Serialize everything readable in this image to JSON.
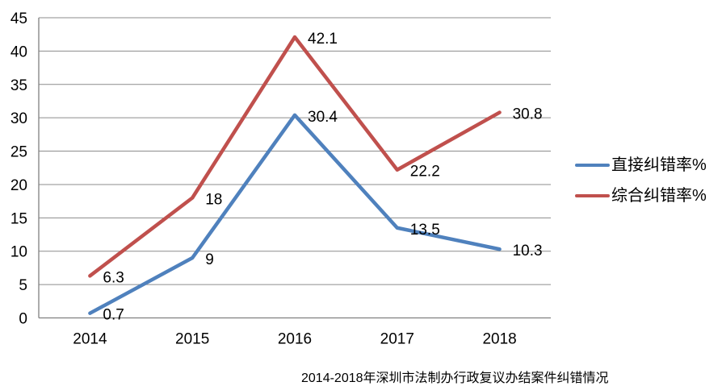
{
  "chart_data": {
    "type": "line",
    "title": "2014-2018年深圳市法制办行政复议办结案件纠错情况",
    "categories": [
      "2014",
      "2015",
      "2016",
      "2017",
      "2018"
    ],
    "series": [
      {
        "name": "直接纠错率%",
        "color": "#4F81BD",
        "values": [
          0.7,
          9,
          30.4,
          13.5,
          10.3
        ],
        "labels": [
          "0.7",
          "9",
          "30.4",
          "13.5",
          "10.3"
        ]
      },
      {
        "name": "综合纠错率%",
        "color": "#C0504D",
        "values": [
          6.3,
          18,
          42.1,
          22.2,
          30.8
        ],
        "labels": [
          "6.3",
          "18",
          "42.1",
          "22.2",
          "30.8"
        ]
      }
    ],
    "y_axis": {
      "min": 0,
      "max": 45,
      "step": 5,
      "tick_labels": [
        "0",
        "5",
        "10",
        "15",
        "20",
        "25",
        "30",
        "35",
        "40",
        "45"
      ]
    },
    "grid": true,
    "legend_position": "right"
  },
  "colors": {
    "background": "#FFFFFF",
    "grid": "#8C8C8C",
    "axis": "#808080",
    "text": "#000000"
  }
}
